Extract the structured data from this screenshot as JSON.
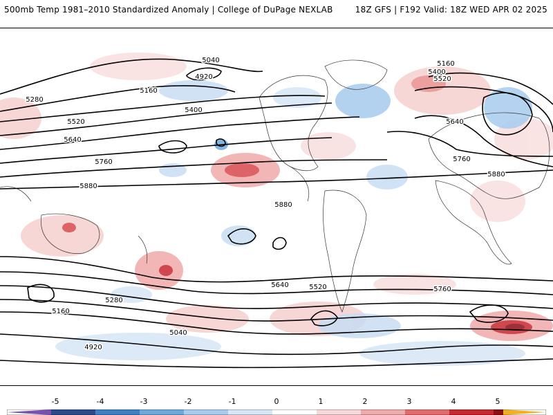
{
  "header": {
    "title_left": "500mb Temp 1981–2010 Standardized Anomaly | College of DuPage NEXLAB",
    "title_right": "18Z GFS | F192 Valid: 18Z WED APR 02 2025"
  },
  "contour_labels": [
    "5040",
    "4920",
    "5160",
    "5280",
    "5400",
    "5520",
    "5640",
    "5760",
    "5880",
    "5160",
    "5400",
    "5520",
    "5640",
    "5760",
    "5880",
    "5280",
    "5160",
    "5040",
    "4920",
    "5520",
    "5640",
    "5760",
    "5880"
  ],
  "colorbar": {
    "labels": [
      "-5",
      "-4",
      "-3",
      "-2",
      "-1",
      "0",
      "1",
      "2",
      "3",
      "4",
      "5"
    ],
    "colors": [
      "#7b4fb0",
      "#2b4a8c",
      "#3d7fc4",
      "#6ea9de",
      "#a6cbee",
      "#d6e6f6",
      "#ffffff",
      "#f8d9d9",
      "#f1aaaa",
      "#e36b6b",
      "#c8282e",
      "#8b0f16",
      "#f2b01e"
    ]
  }
}
